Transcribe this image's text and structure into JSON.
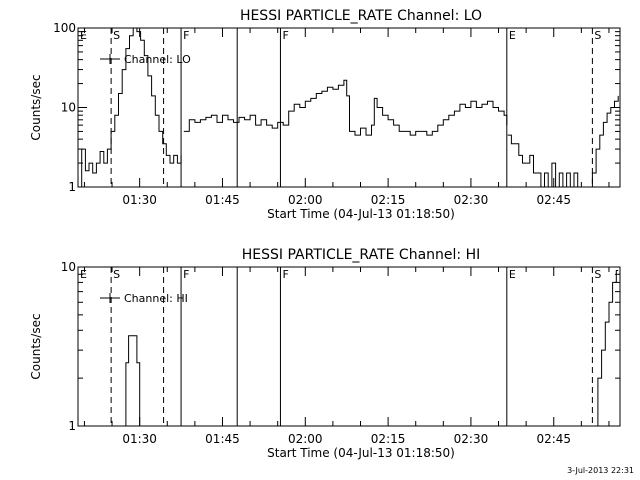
{
  "chart_data": [
    {
      "type": "line",
      "title": "HESSI PARTICLE_RATE Channel: LO",
      "xlabel": "Start Time (04-Jul-13 01:18:50)",
      "ylabel": "Counts/sec",
      "y_scale": "log",
      "ylim": [
        1,
        100
      ],
      "xlim": [
        "01:18:50",
        "02:57:00"
      ],
      "y_tick_labels": [
        "1",
        "10",
        "100"
      ],
      "x_tick_labels": [
        "01:30",
        "01:45",
        "02:00",
        "02:15",
        "02:30",
        "02:45"
      ],
      "legend": {
        "label": "Channel: LO",
        "placement": "top-left"
      },
      "markers": [
        {
          "label": "E",
          "time": "01:18:50",
          "style": "solid"
        },
        {
          "label": "S",
          "time": "01:24:50",
          "style": "dashed"
        },
        {
          "label": "",
          "time": "01:34:20",
          "style": "dashed"
        },
        {
          "label": "F",
          "time": "01:37:30",
          "style": "solid"
        },
        {
          "label": "",
          "time": "01:47:40",
          "style": "solid"
        },
        {
          "label": "F",
          "time": "01:55:30",
          "style": "solid"
        },
        {
          "label": "E",
          "time": "02:36:30",
          "style": "solid"
        },
        {
          "label": "S",
          "time": "02:52:00",
          "style": "dashed"
        },
        {
          "label": "",
          "time": "02:57:00",
          "style": "dashdot"
        }
      ],
      "series": [
        {
          "segments": [
            [
              [
                "01:18:50",
                1
              ],
              [
                "01:19:30",
                3
              ],
              [
                "01:20:10",
                1.6
              ],
              [
                "01:20:50",
                2
              ],
              [
                "01:21:30",
                1.5
              ],
              [
                "01:22:10",
                2
              ],
              [
                "01:22:50",
                2.8
              ],
              [
                "01:23:30",
                2
              ],
              [
                "01:24:10",
                3
              ],
              [
                "01:24:50",
                5
              ],
              [
                "01:25:30",
                8
              ],
              [
                "01:26:10",
                15
              ],
              [
                "01:26:50",
                30
              ],
              [
                "01:27:30",
                55
              ],
              [
                "01:28:10",
                80
              ],
              [
                "01:28:50",
                100
              ],
              [
                "01:29:30",
                90
              ],
              [
                "01:30:10",
                70
              ],
              [
                "01:30:50",
                45
              ],
              [
                "01:31:30",
                25
              ],
              [
                "01:32:10",
                14
              ],
              [
                "01:32:50",
                8
              ],
              [
                "01:33:30",
                5
              ],
              [
                "01:34:10",
                3.5
              ],
              [
                "01:34:50",
                2.5
              ],
              [
                "01:35:30",
                2
              ],
              [
                "01:36:10",
                2.5
              ],
              [
                "01:36:50",
                2
              ],
              [
                "01:37:30",
                2.5
              ]
            ],
            [
              [
                "01:38:00",
                5
              ],
              [
                "01:39:00",
                7
              ],
              [
                "01:40:00",
                6.5
              ],
              [
                "01:41:00",
                7
              ],
              [
                "01:42:00",
                7.5
              ],
              [
                "01:43:00",
                8
              ],
              [
                "01:44:00",
                6.5
              ],
              [
                "01:45:00",
                8
              ],
              [
                "01:46:00",
                7
              ],
              [
                "01:47:00",
                6.5
              ],
              [
                "01:48:00",
                7.5
              ],
              [
                "01:49:00",
                7
              ],
              [
                "01:50:00",
                8
              ],
              [
                "01:51:00",
                6
              ],
              [
                "01:52:00",
                7
              ],
              [
                "01:53:00",
                6
              ],
              [
                "01:54:00",
                5.5
              ],
              [
                "01:55:00",
                6.5
              ],
              [
                "01:56:00",
                6
              ],
              [
                "01:57:00",
                9
              ],
              [
                "01:58:00",
                11
              ],
              [
                "01:59:00",
                10
              ],
              [
                "02:00:00",
                12
              ],
              [
                "02:01:00",
                13
              ],
              [
                "02:02:00",
                15
              ],
              [
                "02:03:00",
                16
              ],
              [
                "02:04:00",
                18
              ],
              [
                "02:05:00",
                17
              ],
              [
                "02:06:00",
                19
              ],
              [
                "02:07:00",
                22
              ],
              [
                "02:07:30",
                14
              ],
              [
                "02:08:00",
                5
              ],
              [
                "02:09:00",
                4.5
              ],
              [
                "02:10:00",
                5.5
              ],
              [
                "02:11:00",
                4.5
              ],
              [
                "02:12:00",
                6
              ],
              [
                "02:12:30",
                13
              ],
              [
                "02:13:00",
                10
              ],
              [
                "02:14:00",
                8
              ],
              [
                "02:15:00",
                7
              ],
              [
                "02:16:00",
                6
              ],
              [
                "02:17:00",
                5
              ],
              [
                "02:18:00",
                5
              ],
              [
                "02:19:00",
                4.5
              ],
              [
                "02:20:00",
                5
              ],
              [
                "02:21:00",
                5
              ],
              [
                "02:22:00",
                4.5
              ],
              [
                "02:23:00",
                5
              ],
              [
                "02:24:00",
                6
              ],
              [
                "02:25:00",
                7
              ],
              [
                "02:26:00",
                8
              ],
              [
                "02:27:00",
                9
              ],
              [
                "02:28:00",
                11
              ],
              [
                "02:29:00",
                10
              ],
              [
                "02:30:00",
                12
              ],
              [
                "02:31:00",
                10
              ],
              [
                "02:32:00",
                11
              ],
              [
                "02:33:00",
                12
              ],
              [
                "02:34:00",
                10
              ],
              [
                "02:35:00",
                9
              ],
              [
                "02:36:00",
                8
              ],
              [
                "02:36:30",
                6
              ]
            ],
            [
              [
                "02:36:40",
                4.5
              ],
              [
                "02:37:20",
                3.5
              ],
              [
                "02:38:00",
                3.5
              ],
              [
                "02:38:40",
                2.5
              ],
              [
                "02:39:20",
                2
              ],
              [
                "02:40:00",
                2
              ],
              [
                "02:40:40",
                2.5
              ],
              [
                "02:41:20",
                1.5
              ],
              [
                "02:42:00",
                1.5
              ],
              [
                "02:42:40",
                1
              ],
              [
                "02:43:20",
                1.5
              ],
              [
                "02:44:00",
                1
              ],
              [
                "02:44:40",
                2
              ],
              [
                "02:45:20",
                1
              ],
              [
                "02:46:00",
                1.5
              ],
              [
                "02:46:40",
                1
              ],
              [
                "02:47:20",
                1.5
              ],
              [
                "02:48:00",
                1
              ],
              [
                "02:48:40",
                1.5
              ],
              [
                "02:49:20",
                1
              ],
              [
                "02:50:00",
                1
              ],
              [
                "02:50:40",
                1
              ],
              [
                "02:51:20",
                1
              ],
              [
                "02:52:00",
                1.5
              ],
              [
                "02:52:40",
                3
              ],
              [
                "02:53:20",
                4.5
              ],
              [
                "02:54:00",
                6.5
              ],
              [
                "02:54:40",
                8.5
              ],
              [
                "02:55:20",
                10
              ],
              [
                "02:56:00",
                12
              ],
              [
                "02:56:40",
                14
              ]
            ]
          ]
        }
      ]
    },
    {
      "type": "line",
      "title": "HESSI PARTICLE_RATE Channel: HI",
      "xlabel": "Start Time (04-Jul-13 01:18:50)",
      "ylabel": "Counts/sec",
      "y_scale": "log",
      "ylim": [
        1,
        10
      ],
      "xlim": [
        "01:18:50",
        "02:57:00"
      ],
      "y_tick_labels": [
        "1",
        "10"
      ],
      "x_tick_labels": [
        "01:30",
        "01:45",
        "02:00",
        "02:15",
        "02:30",
        "02:45"
      ],
      "legend": {
        "label": "Channel: HI",
        "placement": "top-left"
      },
      "markers": [
        {
          "label": "E",
          "time": "01:18:50",
          "style": "solid"
        },
        {
          "label": "S",
          "time": "01:24:50",
          "style": "dashed"
        },
        {
          "label": "",
          "time": "01:34:20",
          "style": "dashed"
        },
        {
          "label": "F",
          "time": "01:37:30",
          "style": "solid"
        },
        {
          "label": "",
          "time": "01:47:40",
          "style": "solid"
        },
        {
          "label": "F",
          "time": "01:55:30",
          "style": "solid"
        },
        {
          "label": "E",
          "time": "02:36:30",
          "style": "solid"
        },
        {
          "label": "S",
          "time": "02:52:00",
          "style": "dashed"
        },
        {
          "label": "",
          "time": "02:57:00",
          "style": "dashdot"
        }
      ],
      "series": [
        {
          "segments": [
            [
              [
                "01:26:50",
                1
              ],
              [
                "01:27:30",
                2.5
              ],
              [
                "01:28:00",
                3.7
              ],
              [
                "01:28:50",
                3.7
              ],
              [
                "01:29:30",
                2.5
              ],
              [
                "01:30:00",
                1
              ]
            ],
            [
              [
                "02:52:20",
                1
              ],
              [
                "02:53:00",
                2
              ],
              [
                "02:53:40",
                3
              ],
              [
                "02:54:20",
                4.5
              ],
              [
                "02:55:00",
                6
              ],
              [
                "02:55:40",
                8
              ],
              [
                "02:56:20",
                9.5
              ],
              [
                "02:56:40",
                9.5
              ]
            ]
          ]
        }
      ]
    }
  ],
  "timestamp": "3-Jul-2013 22:31"
}
